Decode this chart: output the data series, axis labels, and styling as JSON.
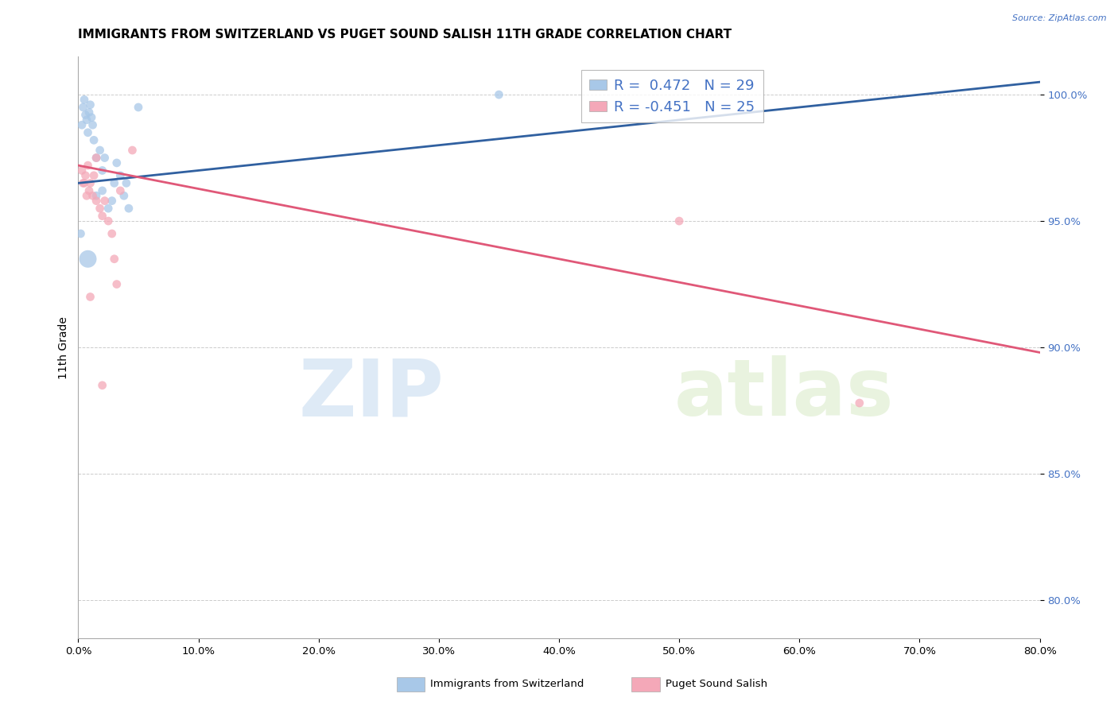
{
  "title": "IMMIGRANTS FROM SWITZERLAND VS PUGET SOUND SALISH 11TH GRADE CORRELATION CHART",
  "source": "Source: ZipAtlas.com",
  "ylabel": "11th Grade",
  "x_tick_labels": [
    "0.0%",
    "10.0%",
    "20.0%",
    "30.0%",
    "40.0%",
    "50.0%",
    "60.0%",
    "70.0%",
    "80.0%"
  ],
  "x_tick_values": [
    0.0,
    10.0,
    20.0,
    30.0,
    40.0,
    50.0,
    60.0,
    70.0,
    80.0
  ],
  "y_tick_labels": [
    "80.0%",
    "85.0%",
    "90.0%",
    "95.0%",
    "100.0%"
  ],
  "y_tick_values": [
    80.0,
    85.0,
    90.0,
    95.0,
    100.0
  ],
  "xlim": [
    0.0,
    80.0
  ],
  "ylim": [
    78.5,
    101.5
  ],
  "blue_label": "Immigrants from Switzerland",
  "pink_label": "Puget Sound Salish",
  "R_blue": 0.472,
  "N_blue": 29,
  "R_pink": -0.451,
  "N_pink": 25,
  "blue_color": "#a8c8e8",
  "pink_color": "#f4a8b8",
  "blue_line_color": "#3060a0",
  "pink_line_color": "#e05878",
  "watermark_zip": "ZIP",
  "watermark_atlas": "atlas",
  "blue_scatter_x": [
    0.4,
    0.5,
    0.6,
    0.7,
    0.8,
    0.9,
    1.0,
    1.1,
    1.2,
    1.3,
    1.5,
    1.5,
    1.8,
    2.0,
    2.0,
    2.2,
    2.5,
    2.8,
    3.0,
    3.2,
    3.5,
    3.8,
    4.0,
    4.2,
    0.8,
    5.0,
    0.3,
    35.0,
    0.2
  ],
  "blue_scatter_y": [
    99.5,
    99.8,
    99.2,
    99.0,
    98.5,
    99.3,
    99.6,
    99.1,
    98.8,
    98.2,
    97.5,
    96.0,
    97.8,
    97.0,
    96.2,
    97.5,
    95.5,
    95.8,
    96.5,
    97.3,
    96.8,
    96.0,
    96.5,
    95.5,
    93.5,
    99.5,
    98.8,
    100.0,
    94.5
  ],
  "blue_scatter_s": [
    60,
    60,
    60,
    60,
    60,
    60,
    60,
    60,
    60,
    60,
    60,
    60,
    60,
    60,
    60,
    60,
    60,
    60,
    60,
    60,
    60,
    60,
    60,
    60,
    250,
    60,
    60,
    60,
    60
  ],
  "pink_scatter_x": [
    0.3,
    0.5,
    0.6,
    0.8,
    0.9,
    1.0,
    1.2,
    1.3,
    1.5,
    1.5,
    1.8,
    2.0,
    2.2,
    2.5,
    2.8,
    3.0,
    3.2,
    3.5,
    0.4,
    4.5,
    50.0,
    65.0,
    0.7,
    2.0,
    1.0
  ],
  "pink_scatter_y": [
    97.0,
    96.5,
    96.8,
    97.2,
    96.2,
    96.5,
    96.0,
    96.8,
    97.5,
    95.8,
    95.5,
    95.2,
    95.8,
    95.0,
    94.5,
    93.5,
    92.5,
    96.2,
    96.5,
    97.8,
    95.0,
    87.8,
    96.0,
    88.5,
    92.0
  ],
  "pink_scatter_s": [
    60,
    60,
    60,
    60,
    60,
    60,
    60,
    60,
    60,
    60,
    60,
    60,
    60,
    60,
    60,
    60,
    60,
    60,
    60,
    60,
    60,
    60,
    60,
    60,
    60
  ],
  "blue_trend_x0": 0.0,
  "blue_trend_y0": 96.5,
  "blue_trend_x1": 80.0,
  "blue_trend_y1": 100.5,
  "pink_trend_x0": 0.0,
  "pink_trend_y0": 97.2,
  "pink_trend_x1": 80.0,
  "pink_trend_y1": 89.8,
  "background_color": "#ffffff",
  "grid_color": "#cccccc",
  "title_fontsize": 11,
  "axis_label_fontsize": 10,
  "tick_fontsize": 9.5,
  "legend_fontsize": 13
}
